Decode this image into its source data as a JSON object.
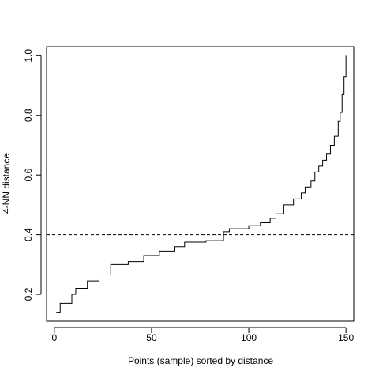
{
  "chart_data": {
    "type": "line",
    "title": "",
    "xlabel": "Points (sample) sorted by distance",
    "ylabel": "4-NN distance",
    "xlim": [
      -4,
      154
    ],
    "ylim": [
      0.11,
      1.03
    ],
    "x_ticks": [
      0,
      50,
      100,
      150
    ],
    "x_tick_labels": [
      "0",
      "50",
      "100",
      "150"
    ],
    "y_ticks": [
      0.2,
      0.4,
      0.6,
      0.8,
      1.0
    ],
    "y_tick_labels": [
      "0.2",
      "0.4",
      "0.6",
      "0.8",
      "1.0"
    ],
    "grid": false,
    "legend": "none",
    "reference_line": {
      "orientation": "horizontal",
      "y": 0.4,
      "style": "dashed"
    },
    "series": [
      {
        "style": "step",
        "color": "#000000",
        "x": [
          1,
          3,
          9,
          11,
          17,
          23,
          29,
          38,
          46,
          54,
          62,
          67,
          78,
          87,
          90,
          100,
          106,
          111,
          114,
          118,
          123,
          127,
          129,
          132,
          134,
          136,
          138,
          140,
          142,
          144,
          146,
          147,
          148,
          149,
          150
        ],
        "y": [
          0.14,
          0.17,
          0.2,
          0.22,
          0.245,
          0.265,
          0.3,
          0.31,
          0.33,
          0.345,
          0.36,
          0.375,
          0.38,
          0.41,
          0.42,
          0.43,
          0.44,
          0.455,
          0.47,
          0.5,
          0.52,
          0.54,
          0.56,
          0.58,
          0.61,
          0.63,
          0.65,
          0.67,
          0.7,
          0.73,
          0.78,
          0.81,
          0.87,
          0.93,
          1.0
        ]
      }
    ]
  },
  "colors": {
    "line": "#000000",
    "axis": "#000000",
    "background": "#ffffff"
  }
}
